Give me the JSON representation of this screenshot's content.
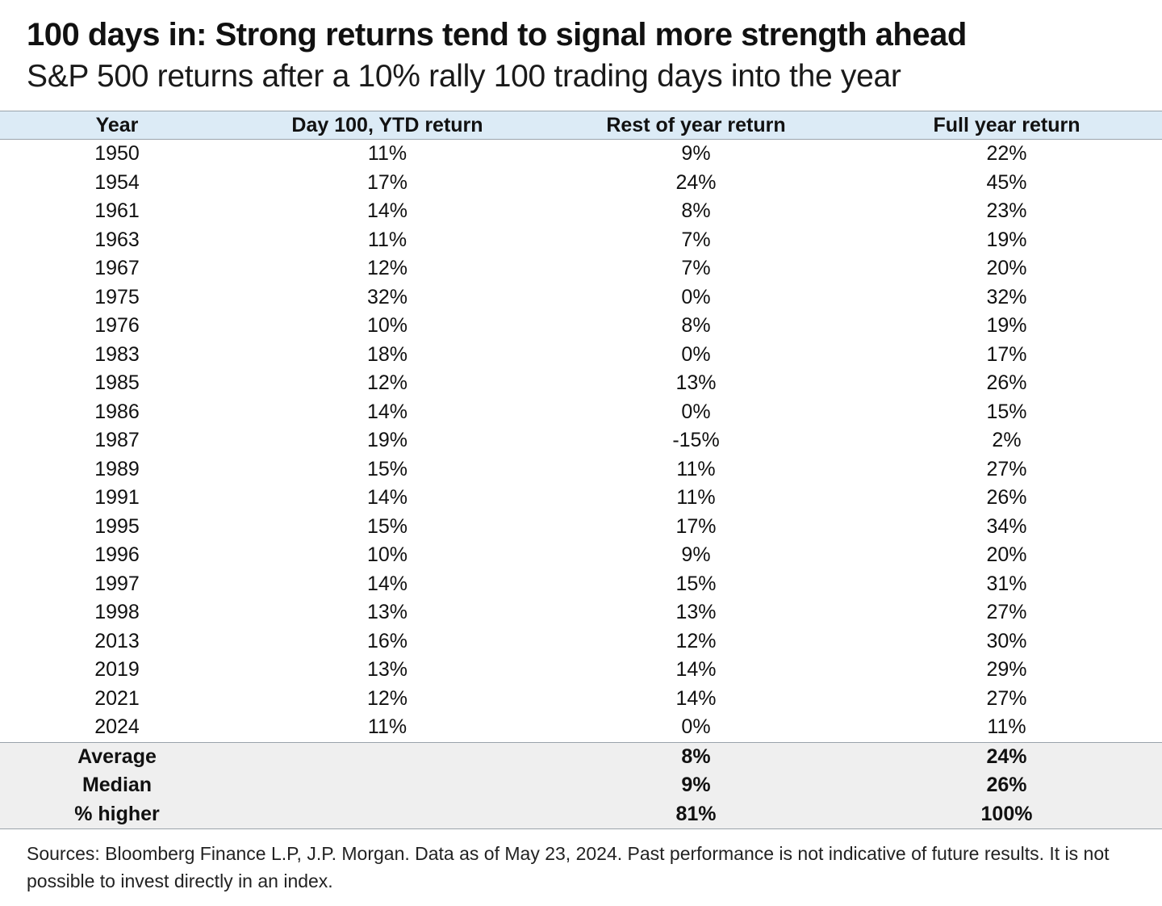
{
  "title": "100 days in: Strong returns tend to signal more strength ahead",
  "subtitle": "S&P 500 returns after a 10% rally 100 trading days into the year",
  "chart_data": {
    "type": "table",
    "columns": [
      "Year",
      "Day 100, YTD return",
      "Rest of year return",
      "Full year return"
    ],
    "rows": [
      [
        "1950",
        "11%",
        "9%",
        "22%"
      ],
      [
        "1954",
        "17%",
        "24%",
        "45%"
      ],
      [
        "1961",
        "14%",
        "8%",
        "23%"
      ],
      [
        "1963",
        "11%",
        "7%",
        "19%"
      ],
      [
        "1967",
        "12%",
        "7%",
        "20%"
      ],
      [
        "1975",
        "32%",
        "0%",
        "32%"
      ],
      [
        "1976",
        "10%",
        "8%",
        "19%"
      ],
      [
        "1983",
        "18%",
        "0%",
        "17%"
      ],
      [
        "1985",
        "12%",
        "13%",
        "26%"
      ],
      [
        "1986",
        "14%",
        "0%",
        "15%"
      ],
      [
        "1987",
        "19%",
        "-15%",
        "2%"
      ],
      [
        "1989",
        "15%",
        "11%",
        "27%"
      ],
      [
        "1991",
        "14%",
        "11%",
        "26%"
      ],
      [
        "1995",
        "15%",
        "17%",
        "34%"
      ],
      [
        "1996",
        "10%",
        "9%",
        "20%"
      ],
      [
        "1997",
        "14%",
        "15%",
        "31%"
      ],
      [
        "1998",
        "13%",
        "13%",
        "27%"
      ],
      [
        "2013",
        "16%",
        "12%",
        "30%"
      ],
      [
        "2019",
        "13%",
        "14%",
        "29%"
      ],
      [
        "2021",
        "12%",
        "14%",
        "27%"
      ],
      [
        "2024",
        "11%",
        "0%",
        "11%"
      ]
    ],
    "summary": [
      [
        "Average",
        "",
        "8%",
        "24%"
      ],
      [
        "Median",
        "",
        "9%",
        "26%"
      ],
      [
        "% higher",
        "",
        "81%",
        "100%"
      ]
    ],
    "colors": {
      "header_bg": "#dcebf6",
      "summary_bg": "#efefef",
      "rule": "#9aa3ab"
    }
  },
  "footnote": "Sources: Bloomberg Finance L.P, J.P. Morgan. Data as of May 23, 2024. Past performance is not indicative of future results. It is not possible to invest directly in an index."
}
